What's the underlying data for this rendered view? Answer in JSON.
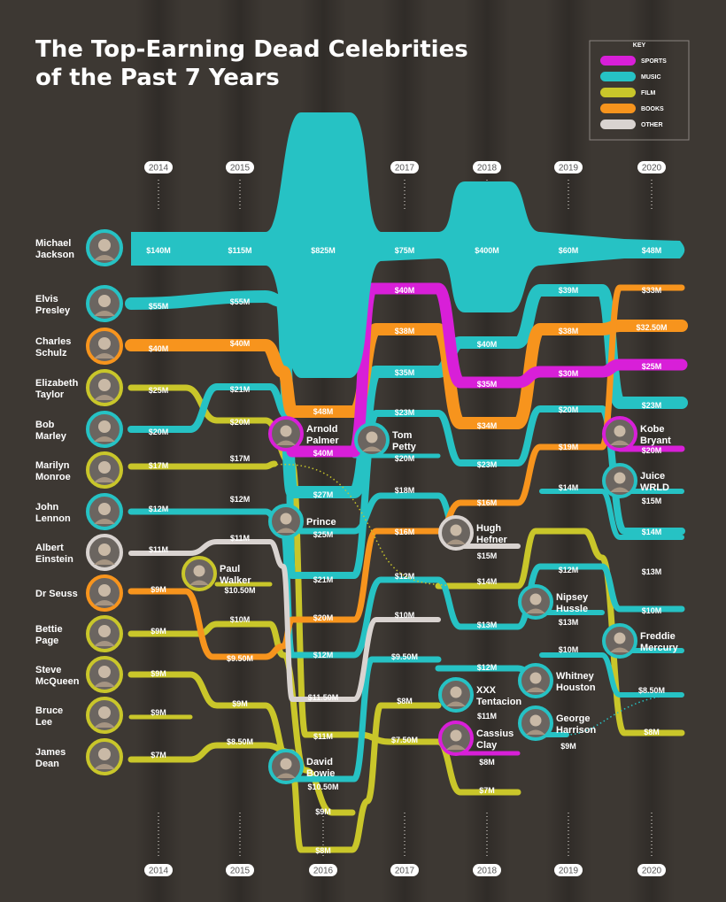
{
  "title_line1": "The Top-Earning Dead Celebrities",
  "title_line2": "of the Past 7 Years",
  "key": {
    "heading": "KEY",
    "items": [
      {
        "label": "SPORTS",
        "color": "#d81fd8"
      },
      {
        "label": "MUSIC",
        "color": "#26c2c4"
      },
      {
        "label": "FILM",
        "color": "#c9c62a"
      },
      {
        "label": "BOOKS",
        "color": "#f7941d"
      },
      {
        "label": "OTHER",
        "color": "#d9d3d0"
      }
    ]
  },
  "chart_data": {
    "type": "bump",
    "years": [
      "2014",
      "2015",
      "2016",
      "2017",
      "2018",
      "2019",
      "2020"
    ],
    "left_labels": [
      [
        "Michael",
        "Jackson"
      ],
      [
        "Elvis",
        "Presley"
      ],
      [
        "Charles",
        "Schulz"
      ],
      [
        "Elizabeth",
        "Taylor"
      ],
      [
        "Bob",
        "Marley"
      ],
      [
        "Marilyn",
        "Monroe"
      ],
      [
        "John",
        "Lennon"
      ],
      [
        "Albert",
        "Einstein"
      ],
      [
        "Dr Seuss"
      ],
      [
        "Bettie",
        "Page"
      ],
      [
        "Steve",
        "McQueen"
      ],
      [
        "Bruce",
        "Lee"
      ],
      [
        "James",
        "Dean"
      ]
    ],
    "left_colors": [
      "music",
      "music",
      "books",
      "film",
      "music",
      "film",
      "music",
      "other",
      "books",
      "film",
      "film",
      "film",
      "film"
    ],
    "series": [
      {
        "name": "Michael Jackson",
        "category": "music",
        "values": [
          "$140M",
          "$115M",
          "$825M",
          "$75M",
          "$400M",
          "$60M",
          "$48M"
        ]
      },
      {
        "name": "Elvis Presley",
        "category": "music",
        "values": [
          "$55M",
          "$55M",
          "$27M",
          "$35M",
          "$40M",
          "$39M",
          "$23M"
        ]
      },
      {
        "name": "Charles Schulz",
        "category": "books",
        "values": [
          "$40M",
          "$40M",
          "$48M",
          "$38M",
          "$34M",
          "$38M",
          "$32.50M"
        ]
      },
      {
        "name": "Elizabeth Taylor",
        "category": "film",
        "values": [
          "$25M",
          "$20M",
          "$11M",
          "$7.50M",
          "$7M"
        ]
      },
      {
        "name": "Bob Marley",
        "category": "music",
        "values": [
          "$20M",
          "$21M",
          "$21M",
          "$23M",
          "$23M",
          "$20M",
          "$14M"
        ]
      },
      {
        "name": "Marilyn Monroe",
        "category": "film",
        "values": [
          "$17M",
          "$17M",
          "$14M",
          "$13M",
          "$8M"
        ]
      },
      {
        "name": "John Lennon",
        "category": "music",
        "values": [
          "$12M",
          "$12M",
          "$12M",
          "$12M",
          "$12M",
          "$12M",
          "$10M"
        ]
      },
      {
        "name": "Albert Einstein",
        "category": "other",
        "values": [
          "$11M",
          "$11M",
          "$11.50M",
          "$10M"
        ]
      },
      {
        "name": "Dr Seuss",
        "category": "books",
        "values": [
          "$9M",
          "$9.50M",
          "$20M",
          "$16M",
          "$16M",
          "$19M",
          "$33M"
        ]
      },
      {
        "name": "Bettie Page",
        "category": "film",
        "values": [
          "$9M",
          "$10M",
          "$9M"
        ]
      },
      {
        "name": "Steve McQueen",
        "category": "film",
        "values": [
          "$9M",
          "$9M",
          "$8M",
          "$8M"
        ]
      },
      {
        "name": "Bruce Lee",
        "category": "film",
        "values": [
          "$9M"
        ]
      },
      {
        "name": "James Dean",
        "category": "film",
        "values": [
          "$7M",
          "$8.50M",
          "$9M"
        ]
      },
      {
        "name": "Paul Walker",
        "category": "film",
        "values": [
          "$10.50M"
        ]
      },
      {
        "name": "Arnold Palmer",
        "category": "sports",
        "values": [
          "$40M",
          "$40M",
          "$35M",
          "$30M",
          "$25M"
        ]
      },
      {
        "name": "Prince",
        "category": "music",
        "values": [
          "$25M",
          "$18M",
          "$13M",
          "$13M"
        ]
      },
      {
        "name": "David Bowie",
        "category": "music",
        "values": [
          "$10.50M",
          "$9.50M",
          "$11M",
          "$12M",
          "$15M"
        ]
      },
      {
        "name": "Tom Petty",
        "category": "music",
        "values": [
          "$20M"
        ]
      },
      {
        "name": "Hugh Hefner",
        "category": "other",
        "values": [
          "$15M"
        ]
      },
      {
        "name": "XXX Tentacion",
        "category": "music",
        "values": [
          "$11M"
        ]
      },
      {
        "name": "Cassius Clay",
        "category": "sports",
        "values": [
          "$8M"
        ]
      },
      {
        "name": "Nipsey Hussle",
        "category": "music",
        "values": [
          "$12M"
        ]
      },
      {
        "name": "Whitney Houston",
        "category": "music",
        "values": [
          "$10M",
          "$8.50M"
        ]
      },
      {
        "name": "George Harrison",
        "category": "music",
        "values": [
          "$9M"
        ]
      },
      {
        "name": "Kobe Bryant",
        "category": "sports",
        "values": [
          "$20M"
        ]
      },
      {
        "name": "Juice WRLD",
        "category": "music",
        "values": [
          "$15M"
        ]
      },
      {
        "name": "Freddie Mercury",
        "category": "music",
        "values": [
          "$13M"
        ]
      }
    ],
    "mid_labels": [
      [
        "Arnold",
        "Palmer"
      ],
      [
        "Tom",
        "Petty"
      ],
      [
        "Prince"
      ],
      [
        "Paul",
        "Walker"
      ],
      [
        "Hugh",
        "Hefner"
      ],
      [
        "David",
        "Bowie"
      ],
      [
        "XXX",
        "Tentacion"
      ],
      [
        "Cassius",
        "Clay"
      ],
      [
        "Nipsey",
        "Hussle"
      ],
      [
        "Whitney",
        "Houston"
      ],
      [
        "George",
        "Harrison"
      ],
      [
        "Kobe",
        "Bryant"
      ],
      [
        "Juice",
        "WRLD"
      ],
      [
        "Freddie",
        "Mercury"
      ]
    ],
    "mid_colors": [
      "sports",
      "music",
      "music",
      "film",
      "other",
      "music",
      "music",
      "sports",
      "music",
      "music",
      "music",
      "sports",
      "music",
      "music"
    ],
    "flow_labels": [
      "$140M",
      "$115M",
      "$825M",
      "$75M",
      "$400M",
      "$60M",
      "$48M",
      "$55M",
      "$55M",
      "$40M",
      "$39M",
      "$33M",
      "$40M",
      "$40M",
      "$38M",
      "$40M",
      "$38M",
      "$32.50M",
      "$25M",
      "$21M",
      "$48M",
      "$35M",
      "$35M",
      "$30M",
      "$25M",
      "$20M",
      "$20M",
      "$23M",
      "$34M",
      "$20M",
      "$23M",
      "$17M",
      "$17M",
      "$40M",
      "$20M",
      "$23M",
      "$19M",
      "$20M",
      "$12M",
      "$12M",
      "$27M",
      "$18M",
      "$16M",
      "$14M",
      "$15M",
      "$11M",
      "$11M",
      "$25M",
      "$16M",
      "$15M",
      "$13M",
      "$14M",
      "$9M",
      "$10.50M",
      "$21M",
      "$12M",
      "$14M",
      "$12M",
      "$13M",
      "$9M",
      "$10M",
      "$20M",
      "$10M",
      "$13M",
      "$10M",
      "$10M",
      "$9.50M",
      "$12M",
      "$9.50M",
      "$12M",
      "$8.50M",
      "$9M",
      "$9M",
      "$11.50M",
      "$8M",
      "$11M",
      "$9M",
      "$8M",
      "$9M",
      "$8.50M",
      "$11M",
      "$7.50M",
      "$8M",
      "$7M",
      "$10.50M",
      "$9M",
      "$7M",
      "$8M"
    ]
  }
}
